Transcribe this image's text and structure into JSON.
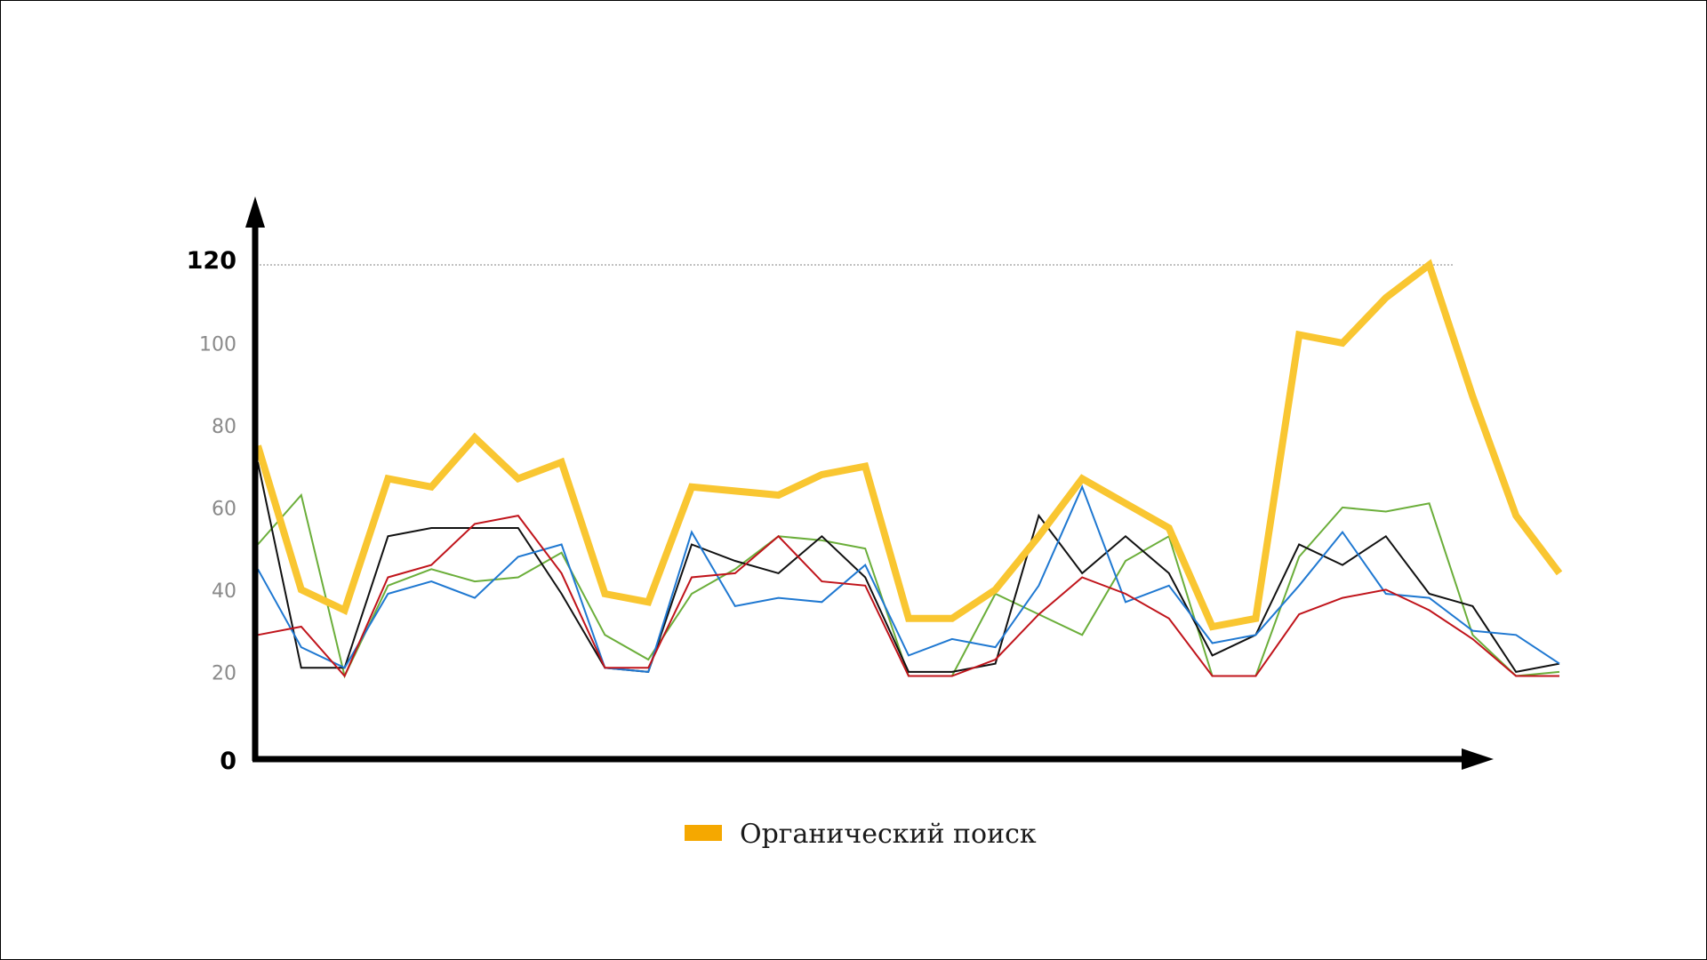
{
  "chart_data": {
    "type": "line",
    "ylim": [
      0,
      120
    ],
    "y_ticks": [
      {
        "value": 0,
        "label": "0",
        "emphasis": true
      },
      {
        "value": 20,
        "label": "20",
        "emphasis": false
      },
      {
        "value": 40,
        "label": "40",
        "emphasis": false
      },
      {
        "value": 60,
        "label": "60",
        "emphasis": false
      },
      {
        "value": 80,
        "label": "80",
        "emphasis": false
      },
      {
        "value": 100,
        "label": "100",
        "emphasis": false
      },
      {
        "value": 120,
        "label": "120",
        "emphasis": true
      }
    ],
    "reference_line": 120,
    "x": [
      1,
      2,
      3,
      4,
      5,
      6,
      7,
      8,
      9,
      10,
      11,
      12,
      13,
      14,
      15,
      16,
      17,
      18,
      19,
      20,
      21,
      22,
      23,
      24,
      25,
      26,
      27,
      28,
      29,
      30,
      31,
      32
    ],
    "grid": false,
    "legend_position": "bottom",
    "series": [
      {
        "name": "Органический поиск",
        "color": "#F9C631",
        "legend_color": "#F5A800",
        "emphasis": true,
        "values": [
          76,
          41,
          36,
          68,
          66,
          78,
          68,
          72,
          40,
          38,
          66,
          65,
          64,
          69,
          71,
          34,
          34,
          41,
          54,
          68,
          62,
          56,
          32,
          34,
          103,
          101,
          112,
          120,
          88,
          59,
          45,
          null
        ]
      },
      {
        "color": "#6BAE3A",
        "values": [
          52,
          64,
          20,
          42,
          46,
          43,
          44,
          50,
          30,
          24,
          40,
          46,
          54,
          53,
          51,
          20,
          20,
          40,
          35,
          30,
          48,
          54,
          20,
          20,
          49,
          61,
          60,
          62,
          30,
          20,
          21,
          null
        ]
      },
      {
        "color": "#111111",
        "values": [
          72,
          22,
          22,
          54,
          56,
          56,
          56,
          40,
          22,
          21,
          52,
          48,
          45,
          54,
          44,
          21,
          21,
          23,
          59,
          45,
          54,
          45,
          25,
          30,
          52,
          47,
          54,
          40,
          37,
          21,
          23,
          null
        ]
      },
      {
        "color": "#1F78D1",
        "values": [
          46,
          27,
          22,
          40,
          43,
          39,
          49,
          52,
          22,
          21,
          55,
          37,
          39,
          38,
          47,
          25,
          29,
          27,
          42,
          66,
          38,
          42,
          28,
          30,
          42,
          55,
          40,
          39,
          31,
          30,
          23,
          null
        ]
      },
      {
        "color": "#C0141B",
        "values": [
          30,
          32,
          20,
          44,
          47,
          57,
          59,
          45,
          22,
          22,
          44,
          45,
          54,
          43,
          42,
          20,
          20,
          24,
          35,
          44,
          40,
          34,
          20,
          20,
          35,
          39,
          41,
          36,
          29,
          20,
          20,
          null
        ]
      }
    ]
  }
}
